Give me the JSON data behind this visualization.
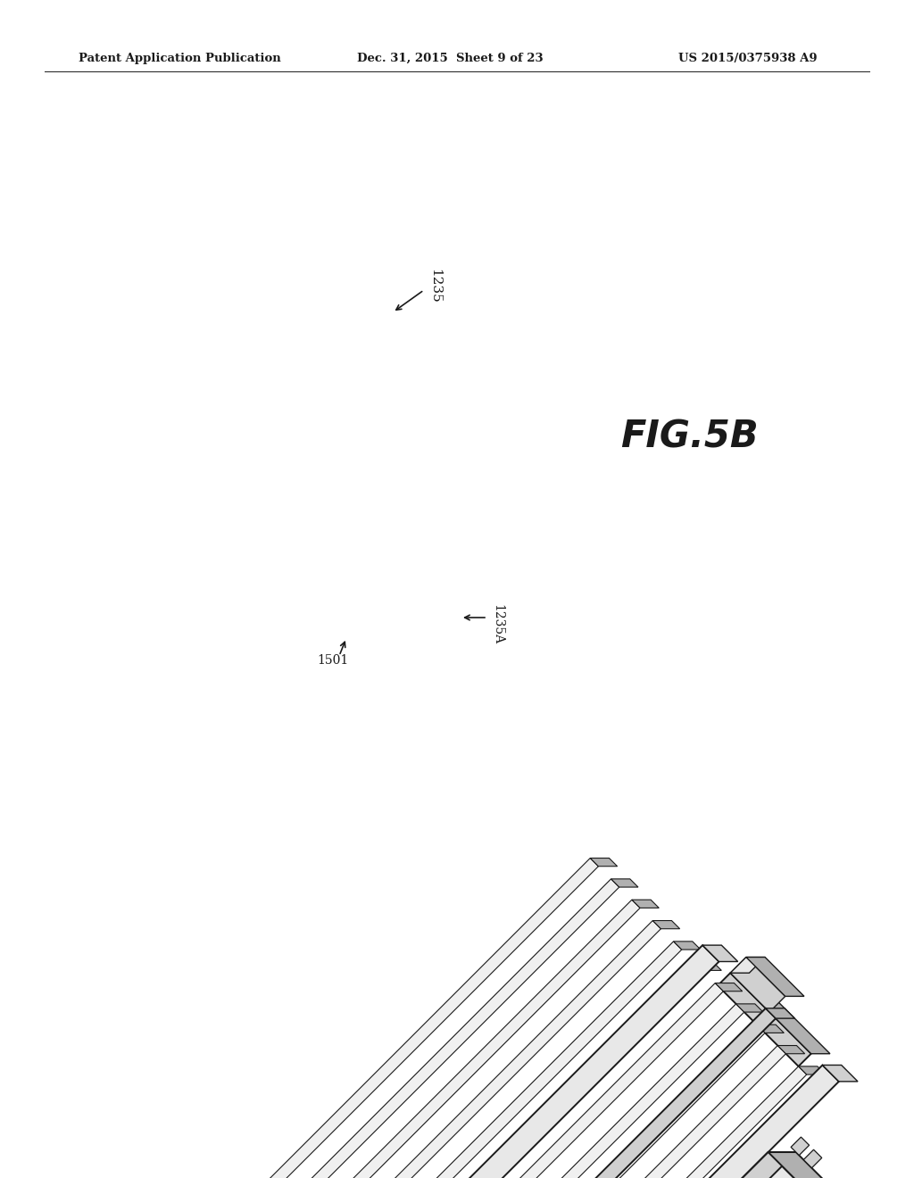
{
  "bg_color": "#ffffff",
  "header_left": "Patent Application Publication",
  "header_center": "Dec. 31, 2015  Sheet 9 of 23",
  "header_right": "US 2015/0375938 A9",
  "fig_label": "FIG.5B",
  "label_1235": "1235",
  "label_1235A": "1235A",
  "label_1501": "1501",
  "lc": "#1a1a1a",
  "fc_light": "#e8e8e8",
  "fc_mid": "#d0d0d0",
  "fc_dark": "#b0b0b0",
  "fc_slat": "#e4e4e4",
  "fc_gap": "#c8c8c8"
}
